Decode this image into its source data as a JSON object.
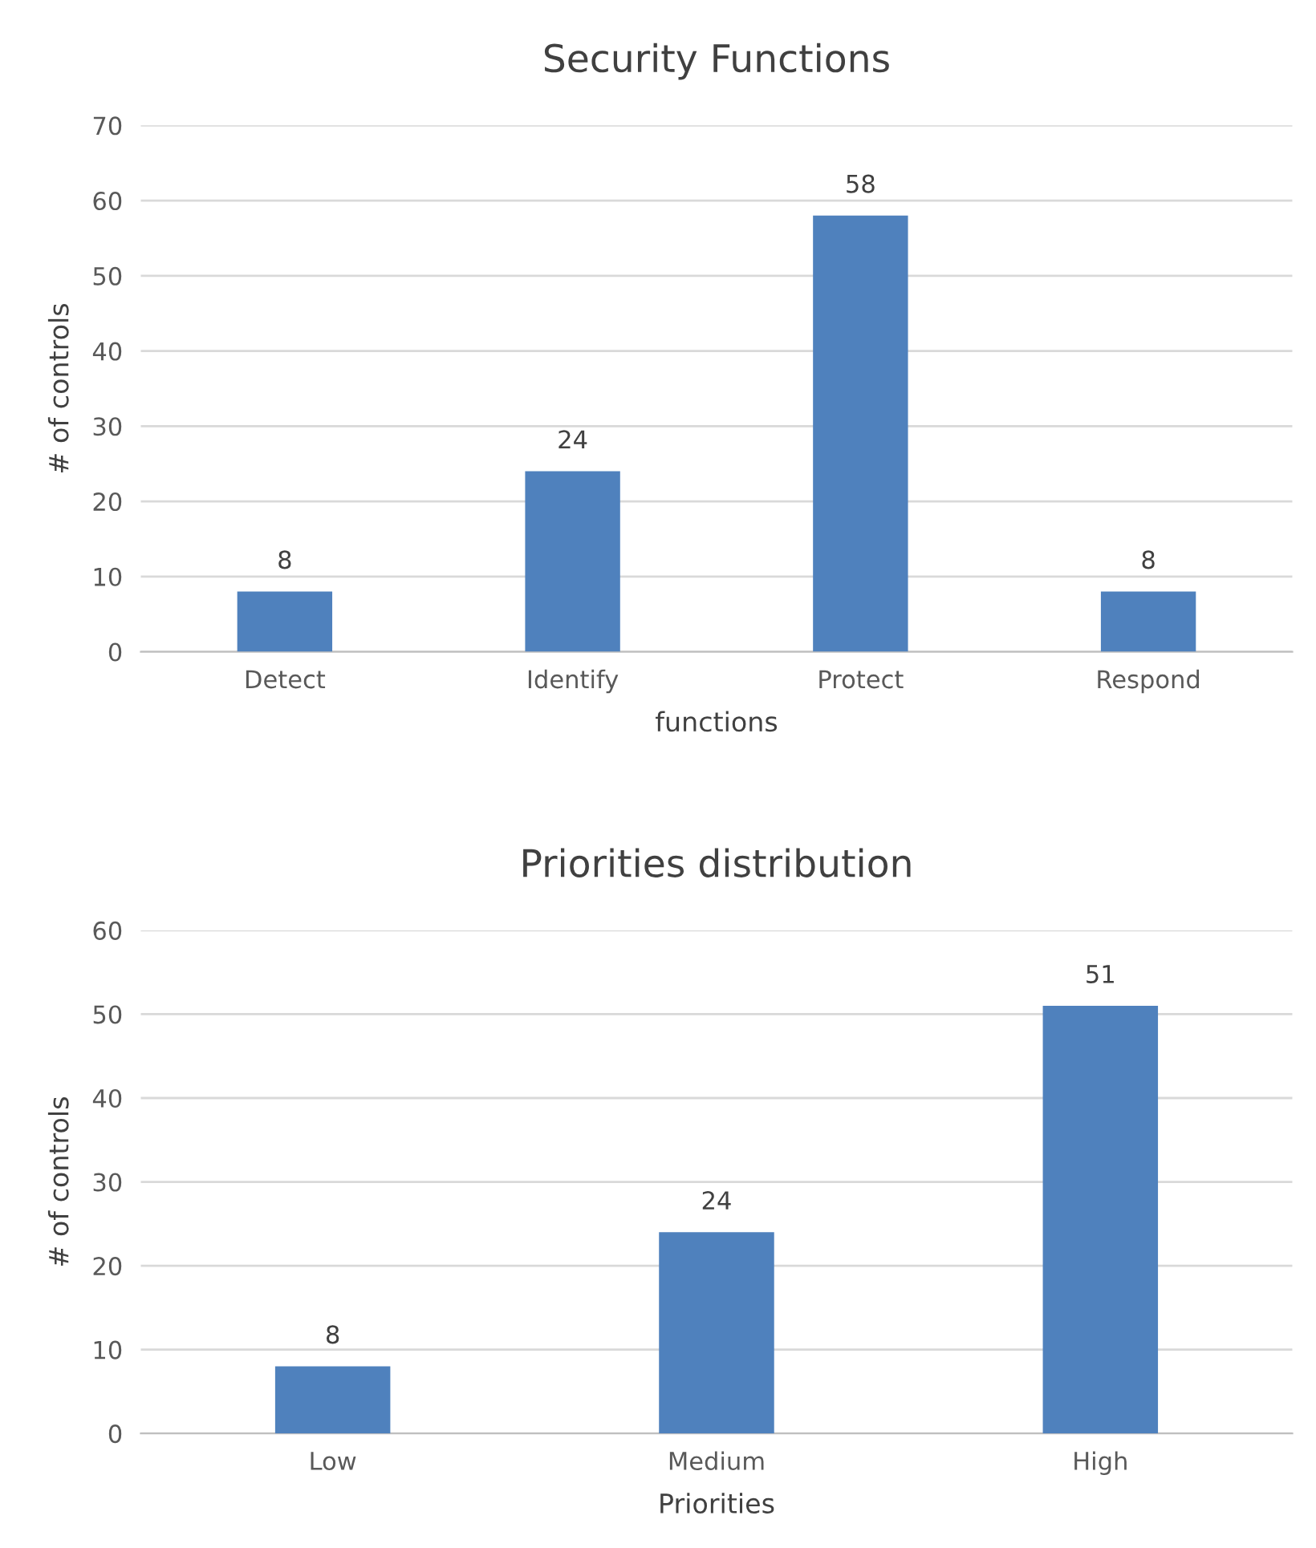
{
  "chart_data": [
    {
      "type": "bar",
      "title": "Security Functions",
      "xlabel": "functions",
      "ylabel": "# of controls",
      "categories": [
        "Detect",
        "Identify",
        "Protect",
        "Respond"
      ],
      "values": [
        8,
        24,
        58,
        8
      ],
      "color": "#4f81bd",
      "ylim": [
        0,
        70
      ],
      "yticks": [
        0,
        10,
        20,
        30,
        40,
        50,
        60,
        70
      ],
      "grid": "y",
      "data_labels": true
    },
    {
      "type": "bar",
      "title": "Priorities distribution",
      "xlabel": "Priorities",
      "ylabel": "# of controls",
      "categories": [
        "Low",
        "Medium",
        "High"
      ],
      "values": [
        8,
        24,
        51
      ],
      "color": "#4f81bd",
      "ylim": [
        0,
        60
      ],
      "yticks": [
        0,
        10,
        20,
        30,
        40,
        50,
        60
      ],
      "grid": "y",
      "data_labels": true
    }
  ]
}
